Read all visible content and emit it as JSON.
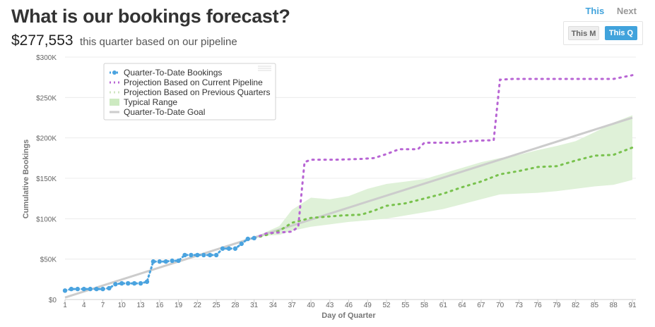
{
  "header": {
    "title": "What is our bookings forecast?",
    "amount": "$277,553",
    "amount_caption": "this quarter based on our pipeline"
  },
  "nav": {
    "this_label": "This",
    "next_label": "Next"
  },
  "period_toggle": {
    "month_label": "This M",
    "quarter_label": "This Q",
    "selected": "quarter"
  },
  "colors": {
    "qtd": "#4aa3df",
    "pipeline": "#b865d4",
    "previous": "#79c24e",
    "range": "#dff1d8",
    "goal": "#cccccc",
    "accent": "#41a3dc"
  },
  "chart_data": {
    "type": "line",
    "xlabel": "Day of Quarter",
    "ylabel": "Cumulative Bookings",
    "xlim": [
      1,
      91
    ],
    "ylim": [
      0,
      300000
    ],
    "x_ticks": [
      1,
      4,
      7,
      10,
      13,
      16,
      19,
      22,
      25,
      28,
      31,
      34,
      37,
      40,
      43,
      46,
      49,
      52,
      55,
      58,
      61,
      64,
      67,
      70,
      73,
      76,
      79,
      82,
      85,
      88,
      91
    ],
    "y_ticks": [
      "$0",
      "$50K",
      "$100K",
      "$150K",
      "$200K",
      "$250K",
      "$300K"
    ],
    "y_tick_values": [
      0,
      50000,
      100000,
      150000,
      200000,
      250000,
      300000
    ],
    "grid": "horizontal",
    "legend": "top-left",
    "series": [
      {
        "name": "Quarter-To-Date Bookings",
        "style": "dotted-blue",
        "x": [
          1,
          2,
          3,
          4,
          5,
          6,
          7,
          8,
          9,
          10,
          11,
          12,
          13,
          14,
          15,
          16,
          17,
          18,
          19,
          20,
          21,
          22,
          23,
          24,
          25,
          26,
          27,
          28,
          29,
          30,
          31
        ],
        "y": [
          11000,
          13000,
          13000,
          13000,
          13000,
          13000,
          13000,
          14000,
          19000,
          20000,
          20000,
          20000,
          20000,
          22000,
          47000,
          47000,
          47000,
          48000,
          48000,
          55000,
          55000,
          55000,
          55000,
          55000,
          55000,
          63000,
          63000,
          63000,
          69000,
          75000,
          76000
        ]
      },
      {
        "name": "Projection Based on Current Pipeline",
        "style": "dotted-purple",
        "x": [
          31,
          33,
          35,
          37,
          38,
          39,
          40,
          44,
          48,
          50,
          52,
          54,
          56,
          57,
          58,
          63,
          65,
          68,
          69,
          70,
          72,
          80,
          88,
          91
        ],
        "y": [
          76000,
          82000,
          83000,
          84000,
          90000,
          170000,
          173000,
          173000,
          174000,
          175000,
          180000,
          186000,
          186000,
          186000,
          194000,
          194000,
          196000,
          197000,
          197000,
          272000,
          273000,
          273000,
          273000,
          277553
        ]
      },
      {
        "name": "Projection Based on Previous Quarters",
        "style": "dotted-green",
        "x": [
          31,
          33,
          35,
          37,
          40,
          45,
          48,
          50,
          52,
          55,
          58,
          61,
          64,
          67,
          70,
          73,
          76,
          79,
          82,
          85,
          88,
          91
        ],
        "y": [
          76000,
          80000,
          85000,
          95000,
          101000,
          104000,
          105000,
          110000,
          116000,
          119000,
          125000,
          131000,
          139000,
          146000,
          155000,
          159000,
          164000,
          165000,
          172000,
          178000,
          179000,
          188000
        ]
      },
      {
        "name": "Typical Range",
        "style": "band",
        "x": [
          31,
          33,
          35,
          37,
          40,
          43,
          46,
          49,
          52,
          55,
          58,
          61,
          64,
          67,
          70,
          73,
          76,
          79,
          82,
          85,
          88,
          91
        ],
        "low": [
          76000,
          79000,
          80000,
          85000,
          90000,
          93000,
          96000,
          98000,
          100000,
          104000,
          108000,
          112000,
          118000,
          124000,
          130000,
          131000,
          132000,
          134000,
          137000,
          140000,
          142000,
          148000
        ],
        "high": [
          76000,
          84000,
          91000,
          111000,
          126000,
          124000,
          128000,
          137000,
          143000,
          146000,
          149000,
          156000,
          163000,
          170000,
          175000,
          179000,
          185000,
          190000,
          196000,
          207000,
          219000,
          228000
        ]
      },
      {
        "name": "Quarter-To-Date Goal",
        "style": "solid-gray",
        "x": [
          1,
          91
        ],
        "y": [
          2500,
          225000
        ]
      }
    ]
  }
}
